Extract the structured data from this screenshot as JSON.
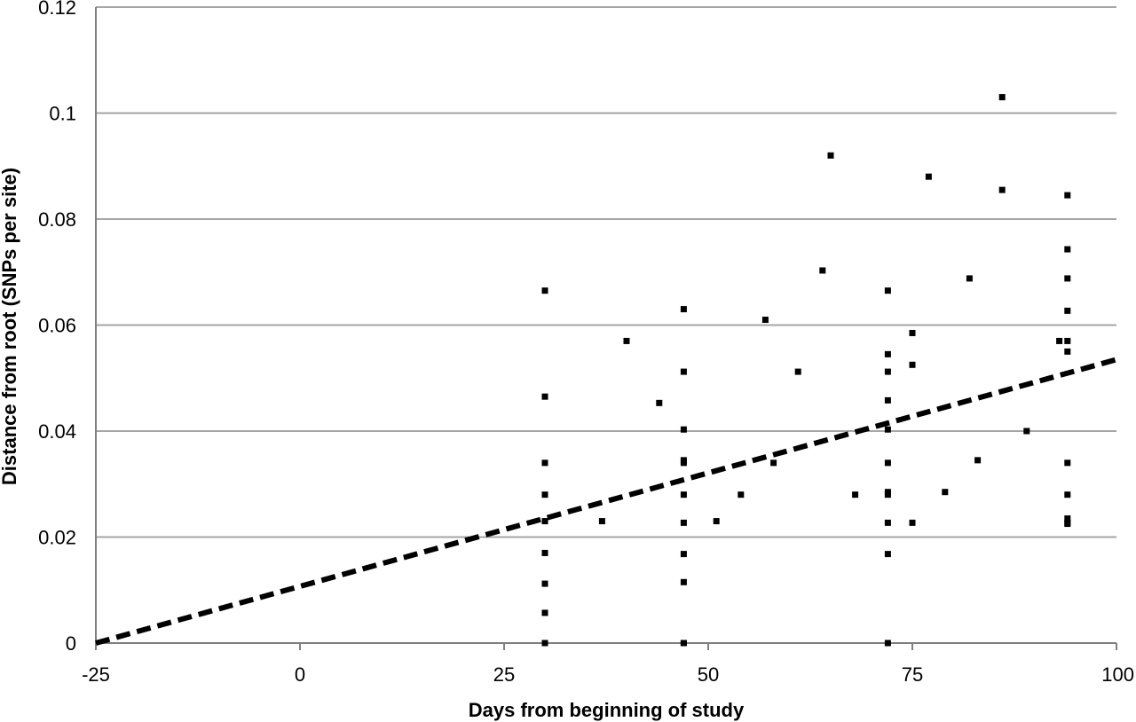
{
  "chart_data": {
    "type": "scatter",
    "title": "",
    "xlabel": "Days from beginning of study",
    "ylabel": "Distance from root (SNPs per site)",
    "xlim": [
      -25,
      100
    ],
    "ylim": [
      0,
      0.12
    ],
    "x_ticks": [
      -25,
      0,
      25,
      50,
      75,
      100
    ],
    "y_ticks": [
      0,
      0.02,
      0.04,
      0.06,
      0.08,
      0.1,
      0.12
    ],
    "x_tick_labels": [
      "-25",
      "0",
      "25",
      "50",
      "75",
      "100"
    ],
    "y_tick_labels": [
      "0",
      "0.02",
      "0.04",
      "0.06",
      "0.08",
      "0.1",
      "0.12"
    ],
    "grid": "horizontal",
    "legend": "none",
    "colors": {
      "points": "#000000",
      "trendline": "#000000",
      "grid": "#a6a6a6",
      "axis": "#7f7f7f"
    },
    "series": [
      {
        "x": [
          30,
          30,
          30,
          30,
          30,
          30,
          30,
          30,
          30,
          37,
          40,
          44,
          47,
          47,
          47,
          47,
          47,
          47,
          47,
          47,
          47,
          47,
          47,
          51,
          54,
          57,
          58,
          61,
          64,
          65,
          68,
          72,
          72,
          72,
          72,
          72,
          72,
          72,
          72,
          72,
          72,
          72,
          75,
          75,
          75,
          77,
          79,
          82,
          83,
          86,
          86,
          89,
          93,
          94,
          94,
          94,
          94,
          94,
          94,
          94,
          94,
          94,
          94,
          94
        ],
        "y": [
          0.0665,
          0.0465,
          0.034,
          0.028,
          0.023,
          0.017,
          0.0112,
          0.0057,
          0.0,
          0.023,
          0.057,
          0.0453,
          0.063,
          0.0512,
          0.0403,
          0.0345,
          0.034,
          0.028,
          0.0227,
          0.0168,
          0.0115,
          0.0,
          0.0,
          0.023,
          0.028,
          0.061,
          0.034,
          0.0512,
          0.0703,
          0.092,
          0.028,
          0.0665,
          0.0545,
          0.0512,
          0.0458,
          0.0403,
          0.034,
          0.0285,
          0.028,
          0.0227,
          0.0168,
          0.0,
          0.0585,
          0.0525,
          0.0227,
          0.088,
          0.0285,
          0.0688,
          0.0345,
          0.103,
          0.0855,
          0.04,
          0.057,
          0.0845,
          0.0743,
          0.0688,
          0.0627,
          0.057,
          0.055,
          0.034,
          0.028,
          0.0235,
          0.0225,
          0.0227
        ]
      }
    ],
    "trendline": {
      "style": "dashed",
      "x": [
        -25,
        100
      ],
      "y": [
        0.0,
        0.0535
      ]
    }
  }
}
